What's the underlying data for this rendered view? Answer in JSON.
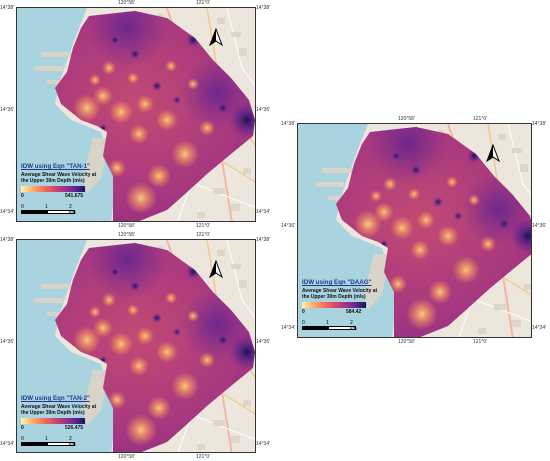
{
  "coords": {
    "lon_left": "120°58'",
    "lon_right": "121°0'",
    "lat_top": "14°38'",
    "lat_mid": "14°36'",
    "lat_bottom": "14°34'"
  },
  "panels": [
    {
      "id": "tan1",
      "title": "IDW using Eqn \"TAN-1\"",
      "subtitle": "Average Shear Wave Velocity at the Upper 30m Depth (m/s)",
      "min_label": "0",
      "max_label": "541.675"
    },
    {
      "id": "tan2",
      "title": "IDW using Eqn \"TAN-2\"",
      "subtitle": "Average Shear Wave Velocity at the Upper 30m Depth (m/s)",
      "min_label": "0",
      "max_label": "526.475"
    },
    {
      "id": "daag",
      "title": "IDW using Eqn \"DAAG\"",
      "subtitle": "Average Shear Wave Velocity at the Upper 30m Depth (m/s)",
      "min_label": "0",
      "max_label": "584.42"
    }
  ],
  "scale_bar": {
    "labels": [
      "0",
      "1",
      "2 km"
    ]
  },
  "colors": {
    "water": "#a9d3df",
    "land": "#ece6dc",
    "ramp_low": "#fcf5b0",
    "ramp_high": "#1e1452",
    "legend_title": "#1f3a8a"
  }
}
